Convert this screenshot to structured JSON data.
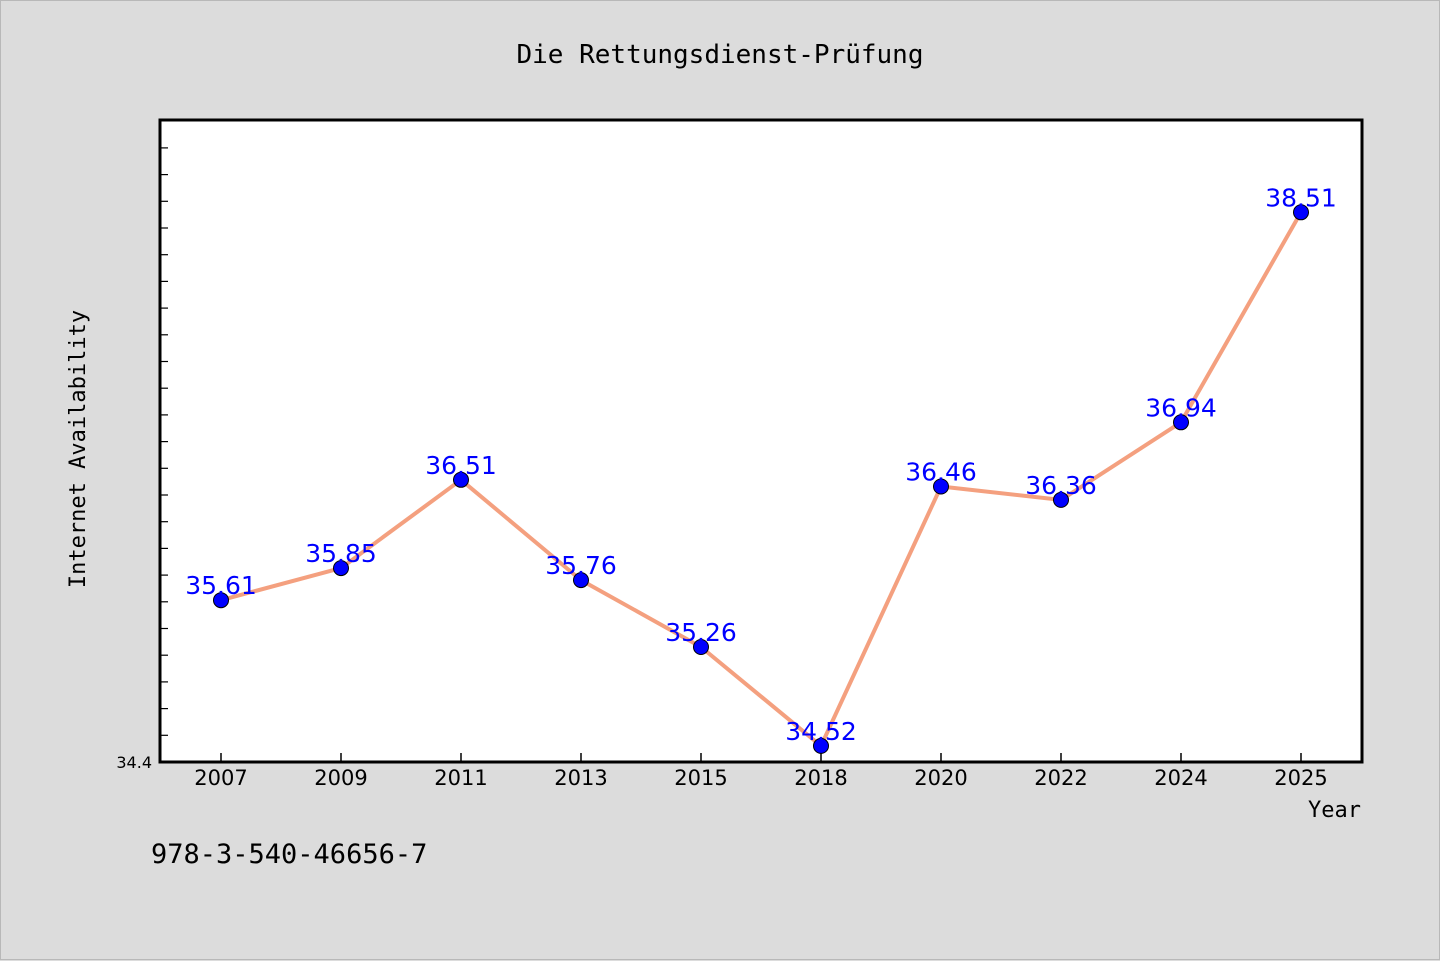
{
  "footer": {
    "isbn": "978-3-540-46656-7"
  },
  "chart_data": {
    "type": "line",
    "title": "Die Rettungsdienst-Prüfung",
    "xlabel": "Year",
    "ylabel": "Internet Availability",
    "categories": [
      "2007",
      "2009",
      "2011",
      "2013",
      "2015",
      "2018",
      "2020",
      "2022",
      "2024",
      "2025"
    ],
    "series": [
      {
        "values": [
          35.61,
          35.85,
          36.51,
          35.76,
          35.26,
          34.52,
          36.46,
          36.36,
          36.94,
          38.51
        ],
        "data_labels": [
          "35.61",
          "35.85",
          "36.51",
          "35.76",
          "35.26",
          "34.52",
          "36.46",
          "36.36",
          "36.94",
          "38.51"
        ],
        "line_color": "#f4a07f",
        "marker_color": "#0000ff"
      }
    ],
    "yticks_labeled": [
      "34.4"
    ],
    "ylim": [
      34.4,
      39.2
    ],
    "grid": false,
    "legend": "none"
  }
}
